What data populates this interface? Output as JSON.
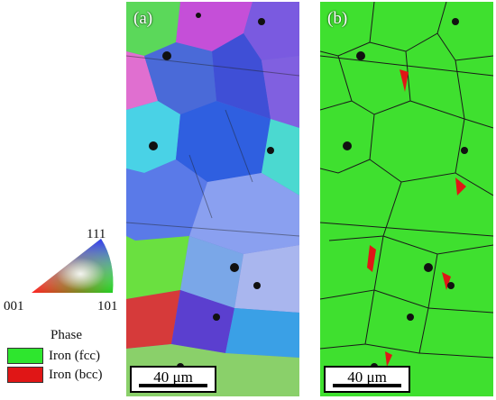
{
  "panels": {
    "a": {
      "label": "(a)",
      "scale_bar": "40 μm"
    },
    "b": {
      "label": "(b)",
      "scale_bar": "40 μm"
    }
  },
  "ipf_key": {
    "labels": {
      "top": "111",
      "left": "001",
      "right": "101"
    }
  },
  "legend": {
    "title": "Phase",
    "items": [
      {
        "label": "Iron (fcc)",
        "color": "#2ee62e"
      },
      {
        "label": "Iron (bcc)",
        "color": "#e01616"
      }
    ]
  }
}
